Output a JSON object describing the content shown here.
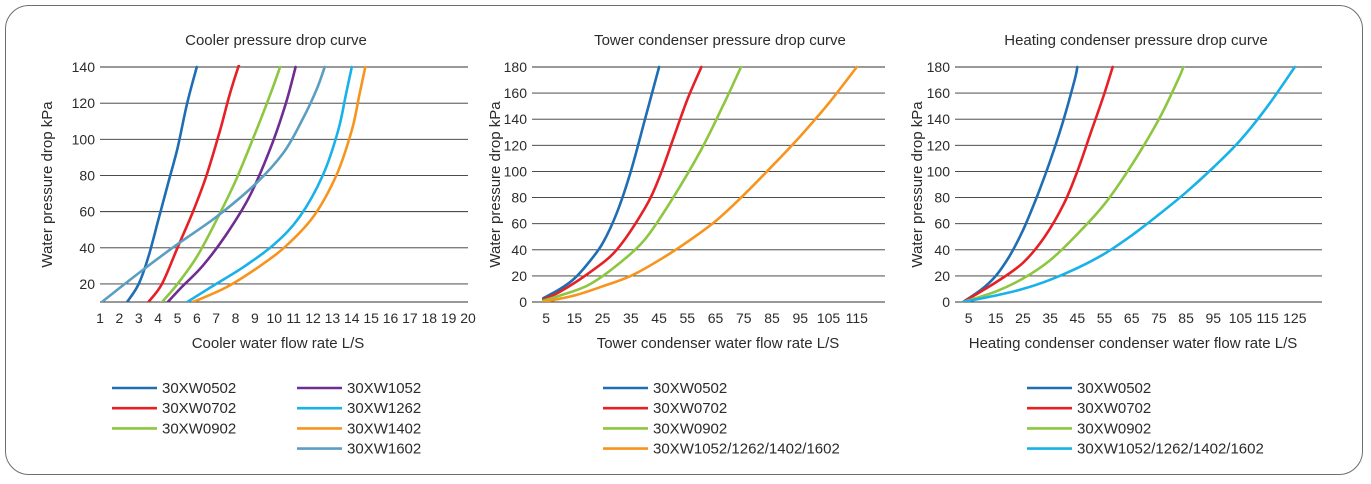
{
  "chart_data": [
    {
      "type": "line",
      "title": "Cooler pressure drop curve",
      "xlabel": "Cooler water flow rate L/S",
      "ylabel": "Water pressure drop kPa",
      "xlim": [
        1,
        20
      ],
      "ylim": [
        10,
        140
      ],
      "x_ticks": [
        1,
        2,
        3,
        4,
        5,
        6,
        7,
        8,
        9,
        10,
        11,
        12,
        13,
        14,
        15,
        16,
        17,
        18,
        19,
        20
      ],
      "y_ticks": [
        20,
        40,
        60,
        80,
        100,
        120,
        140
      ],
      "grid": "horizontal",
      "legend_position": "bottom",
      "legend_columns": 2,
      "series": [
        {
          "name": "30XW0502",
          "color": "#1f6db3",
          "points": [
            [
              2.4,
              10
            ],
            [
              3.0,
              20
            ],
            [
              3.5,
              35
            ],
            [
              4.0,
              55
            ],
            [
              4.5,
              75
            ],
            [
              5.0,
              95
            ],
            [
              5.5,
              120
            ],
            [
              6.0,
              140
            ]
          ]
        },
        {
          "name": "30XW0702",
          "color": "#e52125",
          "points": [
            [
              3.5,
              10
            ],
            [
              4.2,
              20
            ],
            [
              5.0,
              40
            ],
            [
              5.8,
              60
            ],
            [
              6.5,
              80
            ],
            [
              7.2,
              105
            ],
            [
              7.7,
              125
            ],
            [
              8.2,
              142
            ]
          ]
        },
        {
          "name": "30XW0902",
          "color": "#8dc63f",
          "points": [
            [
              4.2,
              10
            ],
            [
              5.0,
              20
            ],
            [
              6.0,
              35
            ],
            [
              7.0,
              55
            ],
            [
              8.0,
              77
            ],
            [
              9.0,
              103
            ],
            [
              9.8,
              125
            ],
            [
              10.3,
              140
            ]
          ]
        },
        {
          "name": "30XW1052",
          "color": "#6f2c91",
          "points": [
            [
              4.5,
              10
            ],
            [
              5.2,
              18
            ],
            [
              6.3,
              30
            ],
            [
              7.5,
              47
            ],
            [
              8.7,
              68
            ],
            [
              9.8,
              95
            ],
            [
              10.6,
              120
            ],
            [
              11.1,
              140
            ]
          ]
        },
        {
          "name": "30XW1262",
          "color": "#18b2e8",
          "points": [
            [
              5.5,
              10
            ],
            [
              7.0,
              20
            ],
            [
              8.5,
              30
            ],
            [
              10.0,
              42
            ],
            [
              11.3,
              57
            ],
            [
              12.5,
              80
            ],
            [
              13.3,
              105
            ],
            [
              13.7,
              125
            ],
            [
              14.0,
              140
            ]
          ]
        },
        {
          "name": "30XW1402",
          "color": "#f7941d",
          "points": [
            [
              5.8,
              10
            ],
            [
              7.5,
              18
            ],
            [
              9.0,
              28
            ],
            [
              10.5,
              40
            ],
            [
              12.0,
              57
            ],
            [
              13.2,
              80
            ],
            [
              14.0,
              105
            ],
            [
              14.4,
              125
            ],
            [
              14.7,
              140
            ]
          ]
        },
        {
          "name": "30XW1602",
          "color": "#5b9ec1",
          "points": [
            [
              1.1,
              10
            ],
            [
              3.0,
              26
            ],
            [
              5.0,
              42
            ],
            [
              7.0,
              57
            ],
            [
              9.0,
              75
            ],
            [
              10.5,
              93
            ],
            [
              11.5,
              112
            ],
            [
              12.2,
              128
            ],
            [
              12.6,
              140
            ]
          ]
        }
      ]
    },
    {
      "type": "line",
      "title": "Tower condenser pressure drop curve",
      "xlabel": "Tower condenser water flow rate L/S",
      "ylabel": "Water pressure drop kPa",
      "xlim": [
        0,
        125
      ],
      "ylim": [
        0,
        180
      ],
      "x_ticks": [
        5,
        15,
        25,
        35,
        45,
        55,
        65,
        75,
        85,
        95,
        105,
        115
      ],
      "y_ticks": [
        0,
        20,
        40,
        60,
        80,
        100,
        120,
        140,
        160,
        180
      ],
      "grid": "horizontal",
      "legend_position": "bottom",
      "legend_columns": 1,
      "series": [
        {
          "name": "30XW0502",
          "color": "#1f6db3",
          "points": [
            [
              4,
              3
            ],
            [
              10,
              10
            ],
            [
              15,
              18
            ],
            [
              20,
              30
            ],
            [
              25,
              45
            ],
            [
              30,
              68
            ],
            [
              35,
              100
            ],
            [
              40,
              140
            ],
            [
              45,
              180
            ]
          ]
        },
        {
          "name": "30XW0702",
          "color": "#e52125",
          "points": [
            [
              4,
              2
            ],
            [
              10,
              8
            ],
            [
              20,
              22
            ],
            [
              30,
              40
            ],
            [
              40,
              72
            ],
            [
              45,
              95
            ],
            [
              50,
              125
            ],
            [
              55,
              155
            ],
            [
              60,
              180
            ]
          ]
        },
        {
          "name": "30XW0902",
          "color": "#8dc63f",
          "points": [
            [
              4,
              1
            ],
            [
              10,
              5
            ],
            [
              20,
              13
            ],
            [
              30,
              28
            ],
            [
              40,
              48
            ],
            [
              50,
              80
            ],
            [
              60,
              117
            ],
            [
              68,
              152
            ],
            [
              74,
              180
            ]
          ]
        },
        {
          "name": "30XW1052/1262/1402/1602",
          "color": "#f7941d",
          "points": [
            [
              4,
              0
            ],
            [
              15,
              5
            ],
            [
              25,
              12
            ],
            [
              35,
              20
            ],
            [
              45,
              32
            ],
            [
              55,
              46
            ],
            [
              65,
              62
            ],
            [
              75,
              82
            ],
            [
              85,
              104
            ],
            [
              95,
              127
            ],
            [
              105,
              152
            ],
            [
              115,
              180
            ]
          ]
        }
      ]
    },
    {
      "type": "line",
      "title": "Heating condenser pressure drop curve",
      "xlabel": "Heating condenser condenser water flow rate L/S",
      "ylabel": "Water pressure drop kPa",
      "xlim": [
        0,
        135
      ],
      "ylim": [
        0,
        180
      ],
      "x_ticks": [
        5,
        15,
        25,
        35,
        45,
        55,
        65,
        75,
        85,
        95,
        105,
        115,
        125
      ],
      "y_ticks": [
        0,
        20,
        40,
        60,
        80,
        100,
        120,
        140,
        160,
        180
      ],
      "grid": "horizontal",
      "legend_position": "bottom",
      "legend_columns": 1,
      "series": [
        {
          "name": "30XW0502",
          "color": "#1f6db3",
          "points": [
            [
              3,
              0
            ],
            [
              10,
              10
            ],
            [
              15,
              20
            ],
            [
              20,
              35
            ],
            [
              25,
              55
            ],
            [
              30,
              80
            ],
            [
              35,
              108
            ],
            [
              40,
              140
            ],
            [
              44,
              170
            ],
            [
              45,
              180
            ]
          ]
        },
        {
          "name": "30XW0702",
          "color": "#e52125",
          "points": [
            [
              3,
              0
            ],
            [
              15,
              15
            ],
            [
              25,
              30
            ],
            [
              33,
              50
            ],
            [
              40,
              75
            ],
            [
              45,
              100
            ],
            [
              50,
              130
            ],
            [
              55,
              160
            ],
            [
              58,
              180
            ]
          ]
        },
        {
          "name": "30XW0902",
          "color": "#8dc63f",
          "points": [
            [
              3,
              0
            ],
            [
              15,
              8
            ],
            [
              25,
              18
            ],
            [
              35,
              32
            ],
            [
              45,
              52
            ],
            [
              55,
              75
            ],
            [
              65,
              105
            ],
            [
              75,
              140
            ],
            [
              82,
              170
            ],
            [
              84,
              180
            ]
          ]
        },
        {
          "name": "30XW1052/1262/1402/1602",
          "color": "#18b2e8",
          "points": [
            [
              3,
              0
            ],
            [
              15,
              5
            ],
            [
              25,
              10
            ],
            [
              35,
              17
            ],
            [
              45,
              26
            ],
            [
              55,
              37
            ],
            [
              65,
              51
            ],
            [
              75,
              67
            ],
            [
              85,
              84
            ],
            [
              95,
              103
            ],
            [
              105,
              124
            ],
            [
              115,
              150
            ],
            [
              125,
              180
            ]
          ]
        }
      ]
    }
  ]
}
